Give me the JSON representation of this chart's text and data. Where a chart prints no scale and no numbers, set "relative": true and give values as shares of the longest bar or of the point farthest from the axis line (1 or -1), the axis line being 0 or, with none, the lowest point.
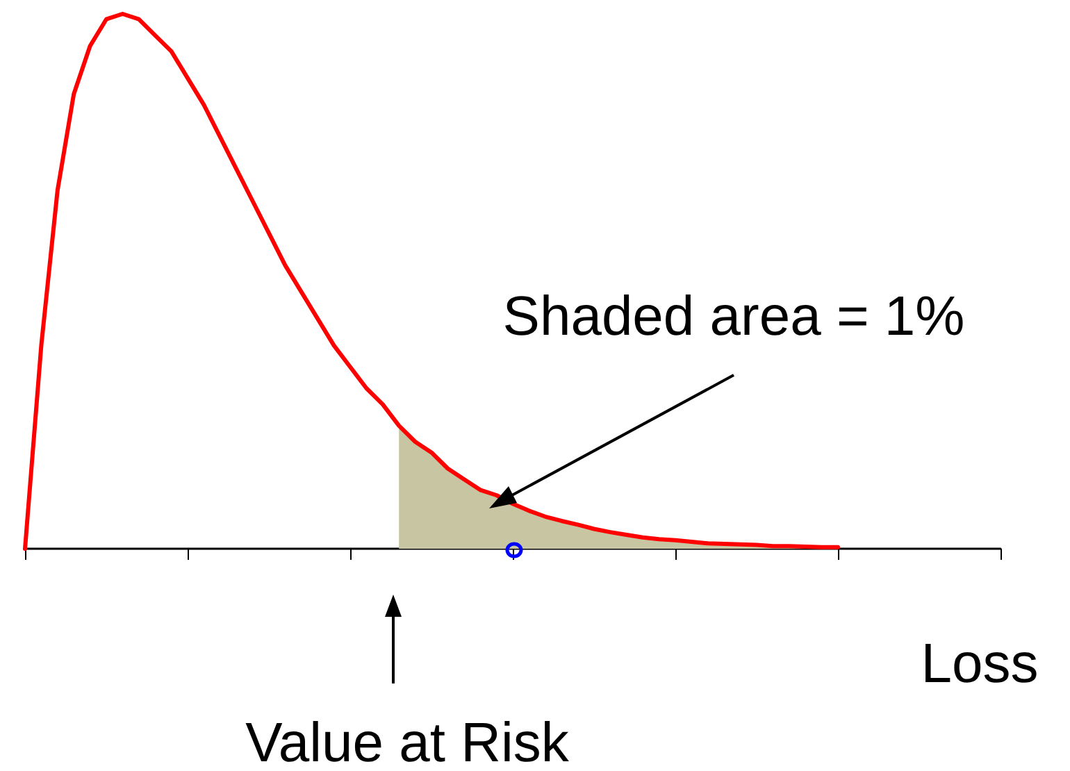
{
  "chart_data": {
    "type": "line",
    "relative": true,
    "xlabel": "Loss",
    "annotations": [
      "Shaded area = 1%",
      "Value at Risk"
    ],
    "grid": false,
    "categories": [
      null,
      null,
      null,
      null,
      null,
      null,
      null,
      null,
      null,
      null,
      null,
      null,
      null,
      null,
      null,
      null,
      null,
      null,
      null,
      null,
      null,
      null,
      null,
      null,
      null,
      null,
      null,
      null,
      null,
      null,
      null,
      null,
      null,
      null,
      null,
      null,
      null,
      null,
      null,
      null,
      null,
      null,
      null,
      null,
      null,
      null,
      null,
      null,
      null,
      null,
      null,
      null,
      null,
      null,
      null,
      null,
      null,
      null,
      null,
      null,
      null
    ],
    "series": [
      {
        "color": "#ff0000",
        "values": [
          0,
          0.38,
          0.67,
          0.85,
          0.94,
          0.99,
          1,
          0.99,
          0.96,
          0.93,
          0.88,
          0.83,
          0.77,
          0.71,
          0.65,
          0.59,
          0.53,
          0.48,
          0.43,
          0.38,
          0.34,
          0.3,
          0.27,
          0.23,
          0.2,
          0.18,
          0.15,
          0.13,
          0.11,
          0.1,
          0.084,
          0.071,
          0.06,
          0.052,
          0.045,
          0.037,
          0.031,
          0.026,
          0.021,
          0.018,
          0.016,
          0.013,
          0.01,
          0.009,
          0.008,
          0.007,
          0.005,
          0.005,
          0.004,
          0.003,
          0.003,
          null,
          null,
          null,
          null,
          null,
          null,
          null,
          null,
          null,
          null
        ]
      },
      {
        "type": "area",
        "color": "#c8c6a2",
        "values": [
          null,
          null,
          null,
          null,
          null,
          null,
          null,
          null,
          null,
          null,
          null,
          null,
          null,
          null,
          null,
          null,
          null,
          null,
          null,
          null,
          null,
          null,
          null,
          0.23,
          0.2,
          0.18,
          0.15,
          0.13,
          0.11,
          0.1,
          0.084,
          0.071,
          0.06,
          0.052,
          0.045,
          0.037,
          0.031,
          0.026,
          0.021,
          0.018,
          0.016,
          0.013,
          0.01,
          0.009,
          0.008,
          0.007,
          0.005,
          0.005,
          0.004,
          0.003,
          0.003,
          null,
          null,
          null,
          null,
          null,
          null,
          null,
          null,
          null,
          null
        ]
      }
    ]
  }
}
